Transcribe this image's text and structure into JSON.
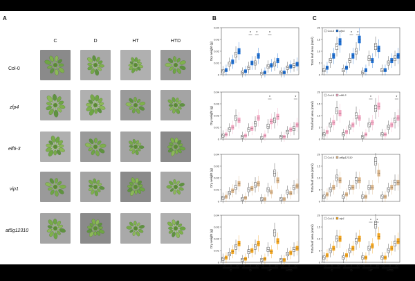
{
  "panels": {
    "a": "A",
    "b": "B",
    "c": "C"
  },
  "photo_grid": {
    "columns": [
      "C",
      "D",
      "HT",
      "HTD"
    ],
    "rows": [
      {
        "label": "Col-0",
        "italic": false
      },
      {
        "label": "zfp4",
        "italic": true
      },
      {
        "label": "elf6-3",
        "italic": true
      },
      {
        "label": "vip1",
        "italic": true
      },
      {
        "label": "at5g12310",
        "italic": true
      }
    ]
  },
  "colors": {
    "col0": "#ffffff",
    "zfp4": "#1f6fd1",
    "elf6": "#f4a9c4",
    "at5g": "#d9b48a",
    "vip1": "#f2a51f"
  },
  "axes": {
    "dry_ylabel": "Dry weight (g)",
    "area_ylabel": "Total leaf area (mm²)",
    "x_ticks": [
      "0",
      "5",
      "10",
      "0",
      "5",
      "10",
      "0",
      "5",
      "10",
      "0",
      "5",
      "10"
    ],
    "groups": [
      "C",
      "D",
      "HT",
      "HTD"
    ],
    "dry_yticks": [
      "0",
      "0.01",
      "0.02",
      "0.03",
      "0.04"
    ],
    "area_yticks": [
      "0",
      "5",
      "10",
      "15",
      "20"
    ],
    "sig": "*"
  },
  "chart_data": [
    {
      "type": "box",
      "panel": "B",
      "row": 0,
      "mutant": "zfp4",
      "legend": [],
      "ylim": [
        0,
        0.04
      ],
      "col0": [
        0.003,
        0.009,
        0.017,
        0.002,
        0.006,
        0.01,
        0.001,
        0.007,
        0.009,
        0.002,
        0.006,
        0.008
      ],
      "mut": [
        0.004,
        0.011,
        0.02,
        0.003,
        0.01,
        0.016,
        0.002,
        0.008,
        0.012,
        0.002,
        0.007,
        0.009
      ],
      "stars": [
        4,
        5,
        7
      ]
    },
    {
      "type": "box",
      "panel": "B",
      "row": 1,
      "mutant": "elf6",
      "legend": [],
      "ylim": [
        0,
        0.04
      ],
      "col0": [
        0.003,
        0.008,
        0.018,
        0.002,
        0.008,
        0.013,
        0.001,
        0.011,
        0.016,
        0.002,
        0.006,
        0.009
      ],
      "mut": [
        0.004,
        0.01,
        0.016,
        0.003,
        0.009,
        0.018,
        0.003,
        0.015,
        0.019,
        0.002,
        0.008,
        0.012
      ],
      "stars": [
        7,
        11
      ]
    },
    {
      "type": "box",
      "panel": "B",
      "row": 2,
      "mutant": "at5g",
      "legend": [],
      "ylim": [
        0,
        0.04
      ],
      "col0": [
        0.003,
        0.007,
        0.012,
        0.002,
        0.01,
        0.014,
        0.002,
        0.01,
        0.024,
        0.002,
        0.008,
        0.012
      ],
      "mut": [
        0.004,
        0.009,
        0.015,
        0.003,
        0.011,
        0.015,
        0.002,
        0.008,
        0.018,
        0.002,
        0.007,
        0.013
      ],
      "stars": []
    },
    {
      "type": "box",
      "panel": "B",
      "row": 3,
      "mutant": "vip1",
      "legend": [],
      "ylim": [
        0,
        0.04
      ],
      "col0": [
        0.003,
        0.007,
        0.013,
        0.002,
        0.009,
        0.013,
        0.002,
        0.011,
        0.025,
        0.002,
        0.007,
        0.011
      ],
      "mut": [
        0.004,
        0.009,
        0.016,
        0.003,
        0.01,
        0.016,
        0.003,
        0.009,
        0.018,
        0.002,
        0.008,
        0.012
      ],
      "stars": []
    },
    {
      "type": "box",
      "panel": "C",
      "row": 0,
      "mutant": "zfp4",
      "legend": [
        "Col-0",
        "zfp4"
      ],
      "ylim": [
        0,
        20
      ],
      "col0": [
        2,
        6,
        12,
        2,
        6,
        10,
        1,
        7,
        12,
        2,
        5,
        7
      ],
      "mut": [
        3,
        8,
        14,
        3,
        8,
        15,
        2,
        6,
        11,
        2,
        6,
        8
      ],
      "stars": [
        4,
        5
      ]
    },
    {
      "type": "box",
      "panel": "C",
      "row": 1,
      "mutant": "elf6",
      "legend": [
        "Col-0",
        "elf6-3"
      ],
      "ylim": [
        0,
        20
      ],
      "col0": [
        2,
        6,
        12,
        2,
        5,
        10,
        1,
        6,
        13,
        2,
        5,
        8
      ],
      "mut": [
        3,
        7,
        11,
        3,
        6,
        9,
        2,
        7,
        14,
        2,
        6,
        9
      ],
      "stars": [
        7,
        11
      ]
    },
    {
      "type": "box",
      "panel": "C",
      "row": 2,
      "mutant": "at5g",
      "legend": [
        "Col-0",
        "at5g12310"
      ],
      "ylim": [
        0,
        20
      ],
      "col0": [
        2,
        5,
        10,
        2,
        6,
        9,
        2,
        6,
        17,
        2,
        5,
        8
      ],
      "mut": [
        3,
        6,
        9,
        3,
        6,
        9,
        2,
        6,
        12,
        2,
        6,
        8
      ],
      "stars": []
    },
    {
      "type": "box",
      "panel": "C",
      "row": 3,
      "mutant": "vip1",
      "legend": [
        "Col-0",
        "vip1"
      ],
      "ylim": [
        0,
        20
      ],
      "col0": [
        2,
        5,
        10,
        2,
        5,
        9,
        2,
        6,
        16,
        2,
        5,
        8
      ],
      "mut": [
        3,
        6,
        10,
        3,
        6,
        10,
        2,
        7,
        11,
        2,
        6,
        9
      ],
      "stars": [
        7,
        8
      ]
    }
  ]
}
